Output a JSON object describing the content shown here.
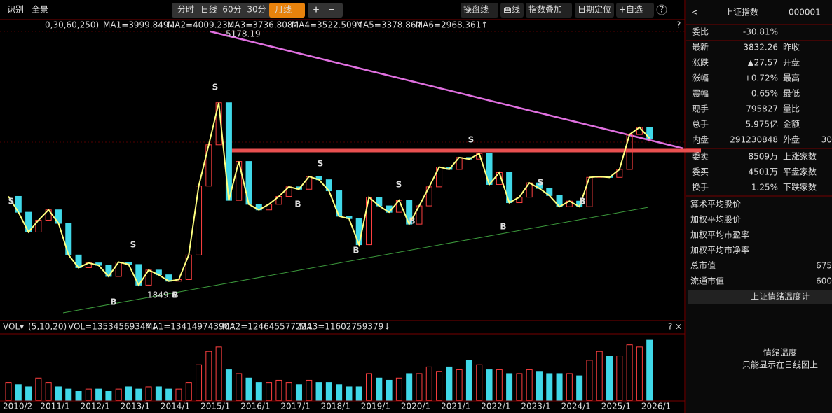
{
  "toolbar": {
    "left": [
      "识别",
      "全景"
    ],
    "periods": [
      "分时",
      "日线",
      "60分",
      "30分",
      "月线"
    ],
    "zoom": [
      "+",
      "−"
    ],
    "tools": [
      "操盘线",
      "画线",
      "指数叠加",
      "日期定位",
      "+自选"
    ],
    "help": "?"
  },
  "price_chart": {
    "indicator_params": "0,30,60,250)",
    "ma_legend": [
      "MA1=3999.849↓",
      "MA2=4009.23↓",
      "MA3=3736.808↑",
      "MA4=3522.509↑",
      "MA5=3378.86↑",
      "MA6=2968.361↑"
    ],
    "high_label": "5178.19",
    "low_label": "1849.6",
    "help": "?",
    "signals": [
      "S",
      "B",
      "S",
      "B",
      "S",
      "S",
      "B",
      "B",
      "S",
      "B",
      "S",
      "B",
      "S",
      "B"
    ],
    "close": [
      3100,
      2900,
      2650,
      2800,
      2930,
      2760,
      2360,
      2200,
      2260,
      2230,
      2090,
      2270,
      2240,
      1980,
      2170,
      2110,
      2030,
      2050,
      2360,
      3230,
      3750,
      4280,
      3050,
      3540,
      3000,
      2930,
      3000,
      3100,
      3220,
      3190,
      3350,
      3310,
      3170,
      2850,
      2820,
      2490,
      3090,
      2980,
      2900,
      3050,
      2750,
      2980,
      3220,
      3470,
      3440,
      3590,
      3570,
      3640,
      3250,
      3400,
      3020,
      3090,
      3270,
      3200,
      3110,
      2970,
      3040,
      2970,
      3340,
      3350,
      3340,
      3440,
      3880,
      3970,
      3832.26
    ],
    "ylim": [
      1560,
      5310
    ]
  },
  "volume_chart": {
    "label": "VOL▾",
    "params": "(5,10,20)",
    "legend": [
      "VOL=13534569344↓",
      "MA1=13414974390↑",
      "MA2=12464557722↓",
      "MA3=11602759379↓"
    ],
    "help": "? ×",
    "volume": [
      4000000000,
      3500000000,
      3000000000,
      5000000000,
      4000000000,
      3000000000,
      2500000000,
      2000000000,
      2500000000,
      2500000000,
      2000000000,
      2500000000,
      3000000000,
      2500000000,
      3000000000,
      3000000000,
      2500000000,
      2500000000,
      4000000000,
      8000000000,
      11000000000,
      12000000000,
      7000000000,
      6000000000,
      5000000000,
      4000000000,
      4000000000,
      4500000000,
      4000000000,
      3500000000,
      4500000000,
      4000000000,
      4000000000,
      3500000000,
      3000000000,
      3000000000,
      6000000000,
      5000000000,
      4500000000,
      5000000000,
      6000000000,
      6000000000,
      7500000000,
      6500000000,
      7500000000,
      7000000000,
      9000000000,
      8000000000,
      7000000000,
      7000000000,
      6000000000,
      6000000000,
      7000000000,
      6500000000,
      6000000000,
      6000000000,
      6000000000,
      5500000000,
      9000000000,
      11000000000,
      10000000000,
      10000000000,
      12500000000,
      12000000000,
      13534569344
    ],
    "ylim": [
      0,
      14500000000
    ]
  },
  "x_labels": [
    "2010/2",
    "2011/1",
    "2012/1",
    "2013/1",
    "2014/1",
    "2015/1",
    "2016/1",
    "2017/1",
    "2018/1",
    "2019/1",
    "2020/1",
    "2021/1",
    "2022/1",
    "2023/1",
    "2024/1",
    "2025/1",
    "2026/1"
  ],
  "quote_panel": {
    "back": "<",
    "name": "上证指数",
    "code": "000001",
    "rows": [
      [
        "委比",
        "-30.81%",
        "",
        ""
      ],
      [
        "最新",
        "3832.26",
        "昨收",
        ""
      ],
      [
        "涨跌",
        "▲27.57",
        "开盘",
        ""
      ],
      [
        "涨幅",
        "+0.72%",
        "最高",
        ""
      ],
      [
        "震幅",
        "0.65%",
        "最低",
        ""
      ],
      [
        "现手",
        "795827",
        "量比",
        ""
      ],
      [
        "总手",
        "5.975亿",
        "金额",
        ""
      ],
      [
        "内盘",
        "291230848",
        "外盘",
        "30"
      ],
      [
        "委卖",
        "8509万",
        "上涨家数",
        ""
      ],
      [
        "委买",
        "4501万",
        "平盘家数",
        ""
      ],
      [
        "换手",
        "1.25%",
        "下跌家数",
        ""
      ]
    ],
    "stats": [
      [
        "算术平均股价",
        ""
      ],
      [
        "加权平均股价",
        ""
      ],
      [
        "加权平均市盈率",
        ""
      ],
      [
        "加权平均市净率",
        ""
      ],
      [
        "总市值",
        "675"
      ],
      [
        "流通市值",
        "600"
      ]
    ],
    "button": "上证情绪温度计",
    "widget_title": "情绪温度",
    "widget_note": "只能显示在日线图上"
  }
}
